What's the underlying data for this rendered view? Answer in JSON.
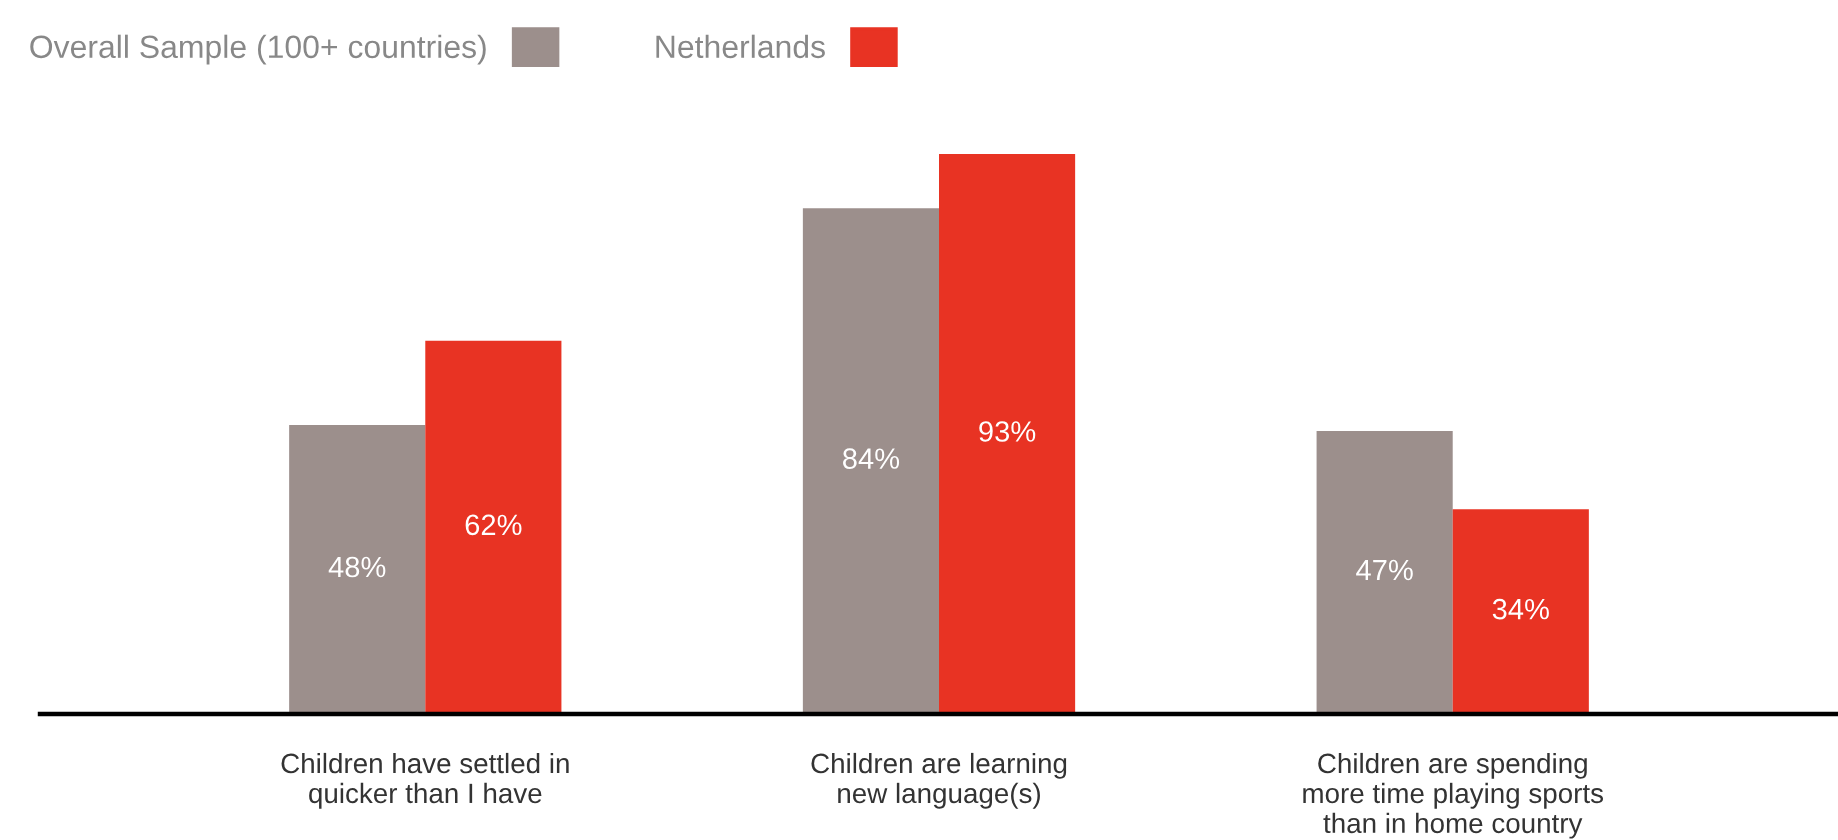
{
  "chart_data": {
    "type": "bar",
    "categories": [
      "Children have settled in\nquicker than I have",
      "Children are learning\nnew language(s)",
      "Children are spending\nmore time playing sports\nthan in home country"
    ],
    "series": [
      {
        "name": "Overall Sample (100+ countries)",
        "color": "#9c8f8c",
        "values": [
          48,
          84,
          47
        ],
        "value_labels": [
          "48%",
          "84%",
          "47%"
        ]
      },
      {
        "name": "Netherlands",
        "color": "#e83323",
        "values": [
          62,
          93,
          34
        ],
        "value_labels": [
          "62%",
          "93%",
          "34%"
        ]
      }
    ],
    "legend": "top left",
    "grid": false
  }
}
